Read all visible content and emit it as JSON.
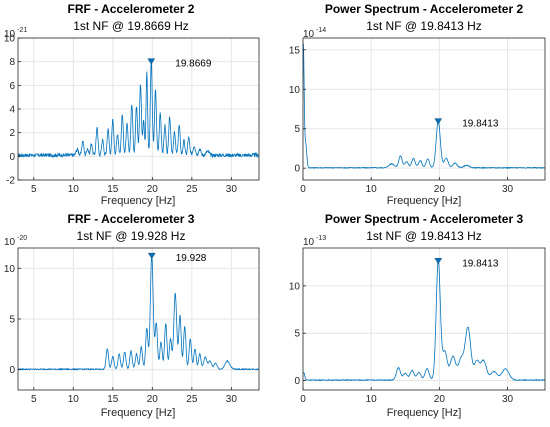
{
  "figure": {
    "background": "#ffffff",
    "line_color": "#0072BD",
    "grid_color": "#e6e6e6",
    "axis_color": "#262626",
    "marker": "down-triangle"
  },
  "chart_data": [
    {
      "id": "frf_acc2",
      "type": "line",
      "title": "FRF - Accelerometer 2",
      "subtitle": "1st NF @ 19.8669 Hz",
      "xlabel": "Frequency [Hz]",
      "ylabel": "",
      "xlim": [
        3,
        33.5
      ],
      "ylim": [
        -2,
        10
      ],
      "xticks": [
        5,
        10,
        15,
        20,
        25,
        30
      ],
      "yticks": [
        -2,
        0,
        2,
        4,
        6,
        8,
        10
      ],
      "exponent": "10",
      "exponent_power": "-21",
      "grid": true,
      "peak": {
        "x": 19.8669,
        "y": 8.0,
        "label": "19.8669"
      },
      "baseline": 0.1,
      "noise": 0.15,
      "peaks": [
        [
          10.5,
          0.5,
          0.15
        ],
        [
          11.2,
          1.2,
          0.12
        ],
        [
          11.8,
          0.6,
          0.12
        ],
        [
          12.3,
          1.0,
          0.12
        ],
        [
          13.0,
          2.3,
          0.12
        ],
        [
          13.7,
          1.3,
          0.12
        ],
        [
          14.4,
          2.2,
          0.12
        ],
        [
          15.0,
          3.0,
          0.12
        ],
        [
          15.6,
          1.8,
          0.12
        ],
        [
          16.2,
          3.4,
          0.12
        ],
        [
          16.8,
          2.6,
          0.12
        ],
        [
          17.4,
          4.3,
          0.12
        ],
        [
          18.0,
          4.2,
          0.12
        ],
        [
          18.5,
          6.0,
          0.12
        ],
        [
          18.9,
          3.0,
          0.1
        ],
        [
          19.3,
          7.0,
          0.1
        ],
        [
          19.8669,
          8.0,
          0.12
        ],
        [
          20.4,
          5.5,
          0.12
        ],
        [
          21.0,
          3.6,
          0.12
        ],
        [
          21.6,
          2.5,
          0.12
        ],
        [
          22.2,
          3.2,
          0.12
        ],
        [
          22.8,
          1.9,
          0.12
        ],
        [
          23.4,
          2.5,
          0.12
        ],
        [
          24.0,
          1.2,
          0.12
        ],
        [
          24.6,
          1.5,
          0.12
        ],
        [
          25.3,
          0.8,
          0.15
        ],
        [
          26.0,
          0.5,
          0.15
        ],
        [
          27.0,
          0.3,
          0.2
        ]
      ]
    },
    {
      "id": "ps_acc2",
      "type": "line",
      "title": "Power Spectrum - Accelerometer 2",
      "subtitle": "1st NF @ 19.8413 Hz",
      "xlabel": "Frequency [Hz]",
      "ylabel": "",
      "xlim": [
        0,
        35.5
      ],
      "ylim": [
        -1.5,
        16.5
      ],
      "xticks": [
        0,
        10,
        20,
        30
      ],
      "yticks": [
        0,
        5,
        10,
        15
      ],
      "exponent": "10",
      "exponent_power": "-14",
      "grid": true,
      "peak": {
        "x": 19.8413,
        "y": 5.9,
        "label": "19.8413"
      },
      "baseline": 0.05,
      "noise": 0.05,
      "peaks": [
        [
          0.05,
          15.5,
          0.12
        ],
        [
          0.4,
          3.0,
          0.15
        ],
        [
          13.0,
          0.5,
          0.4
        ],
        [
          14.3,
          1.5,
          0.25
        ],
        [
          15.2,
          0.8,
          0.25
        ],
        [
          16.2,
          1.2,
          0.25
        ],
        [
          17.2,
          0.9,
          0.25
        ],
        [
          18.3,
          1.1,
          0.25
        ],
        [
          19.8413,
          5.9,
          0.3
        ],
        [
          21.0,
          1.2,
          0.3
        ],
        [
          22.3,
          0.6,
          0.3
        ],
        [
          24.0,
          0.3,
          0.4
        ]
      ]
    },
    {
      "id": "frf_acc3",
      "type": "line",
      "title": "FRF - Accelerometer 3",
      "subtitle": "1st NF @ 19.928 Hz",
      "xlabel": "Frequency [Hz]",
      "ylabel": "",
      "xlim": [
        3,
        33.5
      ],
      "ylim": [
        -2,
        12
      ],
      "xticks": [
        5,
        10,
        15,
        20,
        25,
        30
      ],
      "yticks": [
        0,
        5,
        10
      ],
      "exponent": "10",
      "exponent_power": "-20",
      "grid": true,
      "peak": {
        "x": 19.928,
        "y": 11.2,
        "label": "19.928"
      },
      "baseline": 0.05,
      "noise": 0.05,
      "peaks": [
        [
          14.3,
          2.0,
          0.15
        ],
        [
          15.0,
          1.3,
          0.15
        ],
        [
          15.8,
          1.5,
          0.15
        ],
        [
          16.5,
          1.7,
          0.15
        ],
        [
          17.3,
          1.8,
          0.15
        ],
        [
          18.0,
          1.5,
          0.15
        ],
        [
          18.6,
          2.2,
          0.15
        ],
        [
          19.3,
          4.0,
          0.15
        ],
        [
          19.928,
          11.2,
          0.18
        ],
        [
          20.5,
          4.5,
          0.15
        ],
        [
          21.1,
          2.7,
          0.15
        ],
        [
          21.7,
          4.5,
          0.15
        ],
        [
          22.3,
          3.0,
          0.15
        ],
        [
          22.9,
          7.5,
          0.18
        ],
        [
          23.5,
          5.3,
          0.15
        ],
        [
          24.1,
          4.2,
          0.15
        ],
        [
          24.8,
          3.0,
          0.15
        ],
        [
          25.4,
          2.0,
          0.15
        ],
        [
          26.0,
          1.5,
          0.15
        ],
        [
          26.7,
          1.2,
          0.2
        ],
        [
          27.3,
          0.8,
          0.2
        ],
        [
          28.0,
          0.6,
          0.2
        ],
        [
          29.5,
          0.8,
          0.3
        ]
      ]
    },
    {
      "id": "ps_acc3",
      "type": "line",
      "title": "Power Spectrum - Accelerometer 3",
      "subtitle": "1st NF @ 19.8413 Hz",
      "xlabel": "Frequency [Hz]",
      "ylabel": "",
      "xlim": [
        0,
        35.5
      ],
      "ylim": [
        -1,
        14
      ],
      "xticks": [
        0,
        10,
        20,
        30
      ],
      "yticks": [
        0,
        5,
        10
      ],
      "exponent": "10",
      "exponent_power": "-13",
      "grid": true,
      "peak": {
        "x": 19.8413,
        "y": 12.6,
        "label": "19.8413"
      },
      "baseline": 0.05,
      "noise": 0.04,
      "peaks": [
        [
          0.1,
          0.8,
          0.15
        ],
        [
          14.0,
          1.3,
          0.3
        ],
        [
          15.0,
          0.7,
          0.3
        ],
        [
          16.0,
          1.0,
          0.3
        ],
        [
          17.0,
          0.8,
          0.3
        ],
        [
          18.2,
          1.2,
          0.3
        ],
        [
          19.8413,
          12.6,
          0.3
        ],
        [
          20.8,
          3.0,
          0.35
        ],
        [
          22.0,
          2.5,
          0.4
        ],
        [
          23.2,
          2.2,
          0.4
        ],
        [
          24.2,
          5.5,
          0.4
        ],
        [
          25.5,
          2.0,
          0.4
        ],
        [
          26.5,
          2.0,
          0.4
        ],
        [
          28.0,
          0.9,
          0.5
        ],
        [
          29.7,
          1.2,
          0.5
        ]
      ]
    }
  ]
}
